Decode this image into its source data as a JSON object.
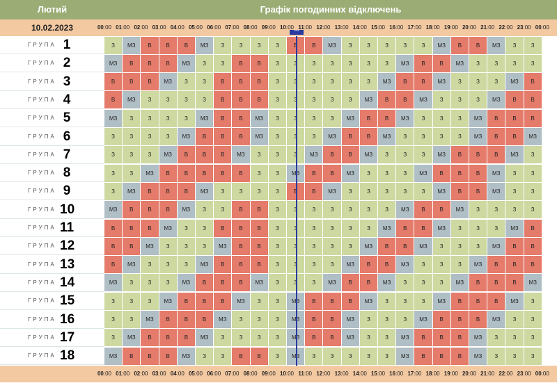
{
  "header": {
    "month": "Лютий",
    "title": "Графік погодинних відключень"
  },
  "date": "10.02.2023",
  "current_marker": "***",
  "current_slot": 20,
  "group_word": "ГРУПА",
  "hours": [
    {
      "h": "00",
      "m": "00"
    },
    {
      "h": "01",
      "m": "00"
    },
    {
      "h": "02",
      "m": "00"
    },
    {
      "h": "03",
      "m": "00"
    },
    {
      "h": "04",
      "m": "00"
    },
    {
      "h": "05",
      "m": "00"
    },
    {
      "h": "06",
      "m": "00"
    },
    {
      "h": "07",
      "m": "00"
    },
    {
      "h": "08",
      "m": "00"
    },
    {
      "h": "09",
      "m": "00"
    },
    {
      "h": "10",
      "m": "00"
    },
    {
      "h": "11",
      "m": "00"
    },
    {
      "h": "12",
      "m": "00"
    },
    {
      "h": "13",
      "m": "00"
    },
    {
      "h": "14",
      "m": "00"
    },
    {
      "h": "15",
      "m": "00"
    },
    {
      "h": "16",
      "m": "00"
    },
    {
      "h": "17",
      "m": "00"
    },
    {
      "h": "18",
      "m": "00"
    },
    {
      "h": "19",
      "m": "00"
    },
    {
      "h": "20",
      "m": "00"
    },
    {
      "h": "21",
      "m": "00"
    },
    {
      "h": "22",
      "m": "00"
    },
    {
      "h": "23",
      "m": "00"
    },
    {
      "h": "00",
      "m": "00"
    }
  ],
  "colors": {
    "З": "#cdd9a0",
    "В": "#e57b6a",
    "МЗ": "#b0bec5",
    "header": "#9bac74",
    "timebar": "#f3c9a2",
    "current": "#2a3a9e"
  },
  "groups": [
    {
      "number": "1",
      "cells": [
        "З",
        "МЗ",
        "В",
        "В",
        "В",
        "МЗ",
        "З",
        "З",
        "З",
        "З",
        "В",
        "В",
        "МЗ",
        "З",
        "З",
        "З",
        "З",
        "З",
        "МЗ",
        "В",
        "В",
        "МЗ",
        "З",
        "З"
      ]
    },
    {
      "number": "2",
      "cells": [
        "МЗ",
        "В",
        "В",
        "В",
        "МЗ",
        "З",
        "З",
        "В",
        "В",
        "З",
        "З",
        "З",
        "З",
        "З",
        "З",
        "З",
        "МЗ",
        "В",
        "В",
        "МЗ",
        "З",
        "З",
        "З",
        "З"
      ]
    },
    {
      "number": "3",
      "cells": [
        "В",
        "В",
        "В",
        "МЗ",
        "З",
        "З",
        "В",
        "В",
        "В",
        "З",
        "З",
        "З",
        "З",
        "З",
        "З",
        "МЗ",
        "В",
        "В",
        "МЗ",
        "З",
        "З",
        "З",
        "МЗ",
        "В"
      ]
    },
    {
      "number": "4",
      "cells": [
        "В",
        "МЗ",
        "З",
        "З",
        "З",
        "З",
        "В",
        "В",
        "В",
        "З",
        "З",
        "З",
        "З",
        "З",
        "МЗ",
        "В",
        "В",
        "МЗ",
        "З",
        "З",
        "З",
        "МЗ",
        "В",
        "В"
      ]
    },
    {
      "number": "5",
      "cells": [
        "МЗ",
        "З",
        "З",
        "З",
        "З",
        "МЗ",
        "В",
        "В",
        "МЗ",
        "З",
        "З",
        "З",
        "З",
        "МЗ",
        "В",
        "В",
        "МЗ",
        "З",
        "З",
        "З",
        "МЗ",
        "В",
        "В",
        "В"
      ]
    },
    {
      "number": "6",
      "cells": [
        "З",
        "З",
        "З",
        "З",
        "МЗ",
        "В",
        "В",
        "В",
        "МЗ",
        "З",
        "З",
        "З",
        "МЗ",
        "В",
        "В",
        "МЗ",
        "З",
        "З",
        "З",
        "З",
        "МЗ",
        "В",
        "В",
        "МЗ"
      ]
    },
    {
      "number": "7",
      "cells": [
        "З",
        "З",
        "З",
        "МЗ",
        "В",
        "В",
        "В",
        "МЗ",
        "З",
        "З",
        "З",
        "МЗ",
        "В",
        "В",
        "МЗ",
        "З",
        "З",
        "З",
        "МЗ",
        "В",
        "В",
        "В",
        "МЗ",
        "З"
      ]
    },
    {
      "number": "8",
      "cells": [
        "З",
        "З",
        "МЗ",
        "В",
        "В",
        "В",
        "В",
        "В",
        "З",
        "З",
        "МЗ",
        "В",
        "В",
        "МЗ",
        "З",
        "З",
        "З",
        "МЗ",
        "В",
        "В",
        "В",
        "МЗ",
        "З",
        "З"
      ]
    },
    {
      "number": "9",
      "cells": [
        "З",
        "МЗ",
        "В",
        "В",
        "В",
        "МЗ",
        "З",
        "З",
        "З",
        "З",
        "В",
        "В",
        "МЗ",
        "З",
        "З",
        "З",
        "З",
        "З",
        "МЗ",
        "В",
        "В",
        "МЗ",
        "З",
        "З"
      ]
    },
    {
      "number": "10",
      "cells": [
        "МЗ",
        "В",
        "В",
        "В",
        "МЗ",
        "З",
        "З",
        "В",
        "В",
        "З",
        "З",
        "З",
        "З",
        "З",
        "З",
        "З",
        "МЗ",
        "В",
        "В",
        "МЗ",
        "З",
        "З",
        "З",
        "З"
      ]
    },
    {
      "number": "11",
      "cells": [
        "В",
        "В",
        "В",
        "МЗ",
        "З",
        "З",
        "В",
        "В",
        "В",
        "З",
        "З",
        "З",
        "З",
        "З",
        "З",
        "МЗ",
        "В",
        "В",
        "МЗ",
        "З",
        "З",
        "З",
        "МЗ",
        "В"
      ]
    },
    {
      "number": "12",
      "cells": [
        "В",
        "В",
        "МЗ",
        "З",
        "З",
        "З",
        "МЗ",
        "В",
        "В",
        "З",
        "З",
        "З",
        "З",
        "З",
        "МЗ",
        "В",
        "В",
        "МЗ",
        "З",
        "З",
        "З",
        "МЗ",
        "В",
        "В"
      ]
    },
    {
      "number": "13",
      "cells": [
        "В",
        "МЗ",
        "З",
        "З",
        "З",
        "МЗ",
        "В",
        "В",
        "В",
        "З",
        "З",
        "З",
        "З",
        "МЗ",
        "В",
        "В",
        "МЗ",
        "З",
        "З",
        "З",
        "МЗ",
        "В",
        "В",
        "В"
      ]
    },
    {
      "number": "14",
      "cells": [
        "МЗ",
        "З",
        "З",
        "З",
        "МЗ",
        "В",
        "В",
        "В",
        "МЗ",
        "З",
        "З",
        "З",
        "МЗ",
        "В",
        "В",
        "МЗ",
        "З",
        "З",
        "З",
        "МЗ",
        "В",
        "В",
        "В",
        "МЗ"
      ]
    },
    {
      "number": "15",
      "cells": [
        "З",
        "З",
        "З",
        "МЗ",
        "В",
        "В",
        "В",
        "МЗ",
        "З",
        "З",
        "МЗ",
        "В",
        "В",
        "В",
        "МЗ",
        "З",
        "З",
        "З",
        "МЗ",
        "В",
        "В",
        "В",
        "МЗ",
        "З"
      ]
    },
    {
      "number": "16",
      "cells": [
        "З",
        "З",
        "МЗ",
        "В",
        "В",
        "В",
        "МЗ",
        "З",
        "З",
        "З",
        "МЗ",
        "В",
        "В",
        "МЗ",
        "З",
        "З",
        "З",
        "МЗ",
        "В",
        "В",
        "В",
        "МЗ",
        "З",
        "З"
      ]
    },
    {
      "number": "17",
      "cells": [
        "З",
        "МЗ",
        "В",
        "В",
        "В",
        "МЗ",
        "З",
        "З",
        "З",
        "З",
        "МЗ",
        "В",
        "В",
        "МЗ",
        "З",
        "З",
        "МЗ",
        "В",
        "В",
        "В",
        "МЗ",
        "З",
        "З",
        "З"
      ]
    },
    {
      "number": "18",
      "cells": [
        "МЗ",
        "В",
        "В",
        "В",
        "МЗ",
        "З",
        "З",
        "В",
        "В",
        "З",
        "МЗ",
        "З",
        "З",
        "З",
        "З",
        "З",
        "МЗ",
        "В",
        "В",
        "В",
        "МЗ",
        "З",
        "З",
        "З"
      ]
    }
  ]
}
